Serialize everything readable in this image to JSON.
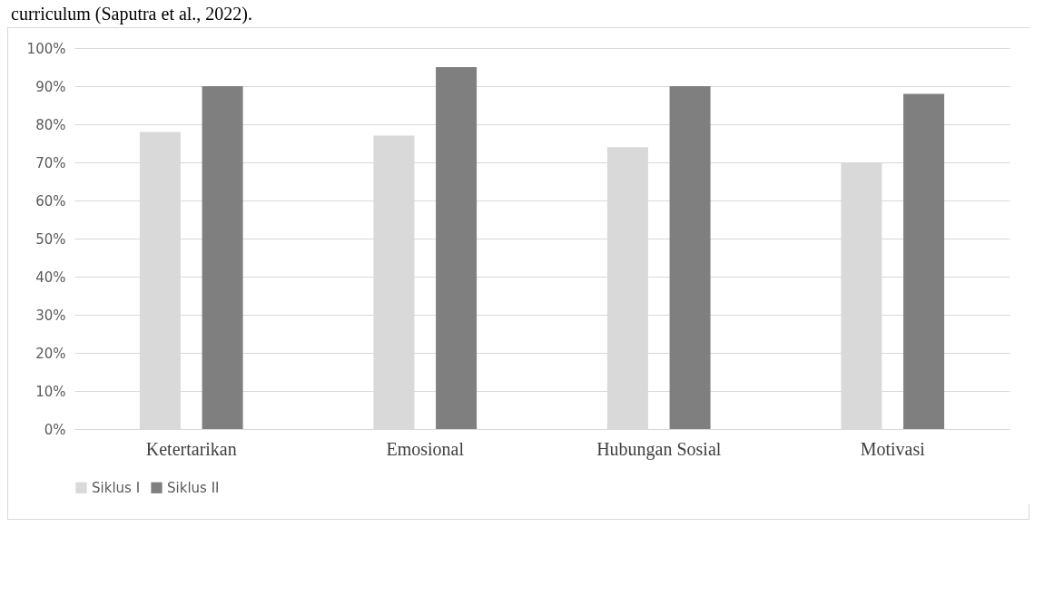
{
  "chart_data": {
    "type": "bar",
    "categories": [
      "Ketertarikan",
      "Emosional",
      "Hubungan Sosial",
      "Motivasi"
    ],
    "series": [
      {
        "name": "Siklus I",
        "color": "#d9d9d9",
        "values": [
          78,
          77,
          74,
          70
        ]
      },
      {
        "name": "Siklus II",
        "color": "#7f7f7f",
        "values": [
          90,
          95,
          90,
          88
        ]
      }
    ],
    "ylim": [
      0,
      100
    ],
    "yticks": [
      {
        "value": 0,
        "label": "0%"
      },
      {
        "value": 10,
        "label": "10%"
      },
      {
        "value": 20,
        "label": "20%"
      },
      {
        "value": 30,
        "label": "30%"
      },
      {
        "value": 40,
        "label": "40%"
      },
      {
        "value": 50,
        "label": "50%"
      },
      {
        "value": 60,
        "label": "60%"
      },
      {
        "value": 70,
        "label": "70%"
      },
      {
        "value": 80,
        "label": "80%"
      },
      {
        "value": 90,
        "label": "90%"
      },
      {
        "value": 100,
        "label": "100%"
      }
    ],
    "grid": "y",
    "legend": "bottom",
    "annotations": [
      "curriculum (Saputra et al., 2022)."
    ]
  }
}
